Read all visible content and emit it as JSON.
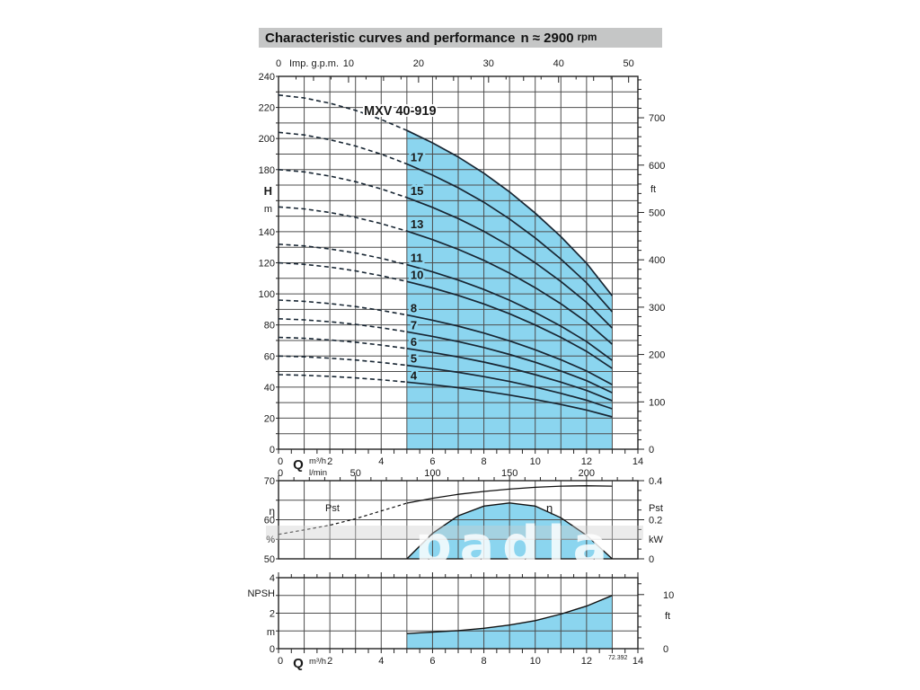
{
  "header": {
    "title": "Characteristic curves and performance",
    "speed": "n ≈ 2900",
    "speed_unit": "rpm"
  },
  "watermark": "padla",
  "figure_number": "72.392",
  "colors": {
    "fill_blue": "#8bd5ef",
    "curve_dark": "#182633",
    "grid": "#4d4d4d",
    "frame": "#222222",
    "titlebar_bg": "#c5c6c6",
    "gray_label": "#909090"
  },
  "chart_data": [
    {
      "type": "line",
      "id": "head-flow",
      "title": "MXV 40-919",
      "x_label_bottom": {
        "q": "Q",
        "m3h": "m³/h",
        "lmin": "l/min",
        "m3h_ticks": [
          0,
          2,
          4,
          6,
          8,
          10,
          12,
          14
        ],
        "lmin_ticks": [
          0,
          50,
          100,
          150,
          200
        ]
      },
      "x_label_top": {
        "label": "Imp. g.p.m.",
        "ticks": [
          0,
          10,
          20,
          30,
          40,
          50
        ]
      },
      "y_left": {
        "sym": "H",
        "unit": "m",
        "ticks": [
          240,
          220,
          200,
          180,
          140,
          120,
          100,
          80,
          60,
          40,
          20,
          0
        ],
        "range": [
          0,
          240
        ]
      },
      "y_right": {
        "unit": "ft",
        "ticks": [
          700,
          600,
          500,
          400,
          300,
          200,
          100,
          0
        ]
      },
      "x": [
        0,
        1,
        2,
        3,
        4,
        5,
        6,
        7,
        8,
        9,
        10,
        11,
        12,
        13
      ],
      "per_stage_head_m": [
        12.0,
        11.9,
        11.72,
        11.48,
        11.17,
        10.8,
        10.38,
        9.9,
        9.35,
        8.72,
        8.0,
        7.2,
        6.3,
        5.2
      ],
      "series": [
        {
          "stages": 19,
          "label": "MXV 40-919",
          "is_model": true
        },
        {
          "stages": 17,
          "label": "17"
        },
        {
          "stages": 15,
          "label": "15"
        },
        {
          "stages": 13,
          "label": "13"
        },
        {
          "stages": 11,
          "label": "11"
        },
        {
          "stages": 10,
          "label": "10"
        },
        {
          "stages": 8,
          "label": "8"
        },
        {
          "stages": 7,
          "label": "7"
        },
        {
          "stages": 6,
          "label": "6"
        },
        {
          "stages": 5,
          "label": "5"
        },
        {
          "stages": 4,
          "label": "4"
        }
      ],
      "operating_range_q": [
        5,
        13
      ],
      "dashed_below_q": 5
    },
    {
      "type": "line",
      "id": "efficiency-power",
      "y_left": {
        "sym": "η",
        "unit": "%",
        "ticks": [
          70,
          60,
          50
        ],
        "range": [
          50,
          70
        ]
      },
      "y_right": {
        "sym": "Pst",
        "unit": "kW",
        "ticks": [
          "0.4",
          "0.2",
          "0"
        ],
        "range": [
          0,
          0.4
        ]
      },
      "series": [
        {
          "name": "η",
          "x": [
            5,
            6,
            7,
            8,
            9,
            10,
            11,
            12,
            13
          ],
          "values": [
            50,
            56.5,
            61,
            63.5,
            64.3,
            63.5,
            60.5,
            56,
            50
          ],
          "filled": true
        },
        {
          "name": "Pst",
          "x": [
            0,
            1,
            2,
            3,
            4,
            5,
            6,
            7,
            8,
            9,
            10,
            11,
            12,
            13
          ],
          "values": [
            0.125,
            0.148,
            0.172,
            0.205,
            0.245,
            0.285,
            0.31,
            0.33,
            0.345,
            0.357,
            0.366,
            0.372,
            0.374,
            0.372
          ],
          "dashed_below_q": 5
        }
      ]
    },
    {
      "type": "area",
      "id": "npsh",
      "y_left": {
        "sym": "NPSH",
        "unit": "m",
        "ticks": [
          4,
          2,
          0
        ],
        "range": [
          0,
          4
        ]
      },
      "y_right": {
        "unit": "ft",
        "ticks": [
          10,
          0
        ]
      },
      "x": [
        5,
        6,
        7,
        8,
        9,
        10,
        11,
        12,
        13
      ],
      "values": [
        0.85,
        0.93,
        1.02,
        1.15,
        1.33,
        1.58,
        1.95,
        2.4,
        3.0
      ],
      "x_label_bottom": {
        "q": "Q",
        "m3h": "m³/h",
        "ticks": [
          0,
          2,
          4,
          6,
          8,
          10,
          12,
          14
        ]
      }
    }
  ]
}
